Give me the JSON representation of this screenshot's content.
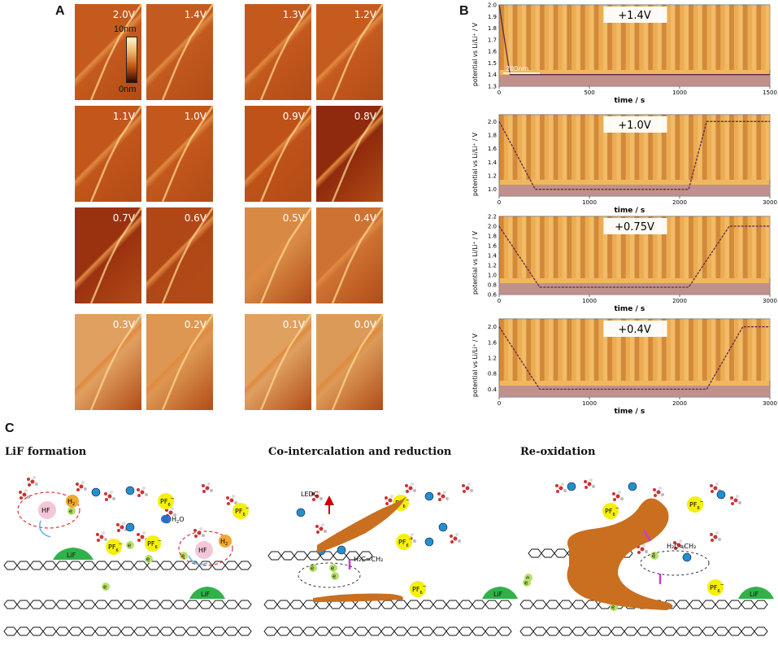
{
  "panel_a": {
    "letter": "A",
    "colorbar_top": "10nm",
    "colorbar_bottom": "0nm",
    "tiles": [
      {
        "label": "2.0V",
        "tone": "#c55a1e"
      },
      {
        "label": "1.4V",
        "tone": "#c35a1f"
      },
      {
        "label": "1.3V",
        "tone": "#c4591d"
      },
      {
        "label": "1.2V",
        "tone": "#c65b1f"
      },
      {
        "label": "1.1V",
        "tone": "#c2561b"
      },
      {
        "label": "1.0V",
        "tone": "#c3581c"
      },
      {
        "label": "0.9V",
        "tone": "#bf5219"
      },
      {
        "label": "0.8V",
        "tone": "#8f2a0c"
      },
      {
        "label": "0.7V",
        "tone": "#9b320f"
      },
      {
        "label": "0.6V",
        "tone": "#b14717"
      },
      {
        "label": "0.5V",
        "tone": "#d88a45"
      },
      {
        "label": "0.4V",
        "tone": "#cd7232"
      },
      {
        "label": "0.3V",
        "tone": "#e0a060"
      },
      {
        "label": "0.2V",
        "tone": "#dd9752"
      },
      {
        "label": "0.1V",
        "tone": "#dfa060"
      },
      {
        "label": "0.0V",
        "tone": "#dc9a58"
      }
    ]
  },
  "panel_b": {
    "letter": "B",
    "ylabel": "potential vs Li/Li⁺ / V",
    "xlabel": "time / s",
    "scale_bar": "200nm"
  },
  "chart_data": [
    {
      "type": "line",
      "title": "+1.4V",
      "xlabel": "time / s",
      "ylabel": "potential vs Li/Li⁺ / V",
      "xlim": [
        0,
        1500
      ],
      "ylim": [
        1.3,
        2.0
      ],
      "xticks": [
        "0",
        "500",
        "1000",
        "1500"
      ],
      "yticks": [
        "2.0",
        "1.9",
        "1.8",
        "1.7",
        "1.6",
        "1.5",
        "1.4",
        "1.3"
      ],
      "x": [
        0,
        60,
        1500
      ],
      "y": [
        2.0,
        1.4,
        1.4
      ]
    },
    {
      "type": "line",
      "title": "+1.0V",
      "xlabel": "time / s",
      "ylabel": "potential vs Li/Li⁺ / V",
      "xlim": [
        0,
        3000
      ],
      "ylim": [
        0.9,
        2.1
      ],
      "xticks": [
        "0",
        "1000",
        "2000",
        "3000"
      ],
      "yticks": [
        "2.0",
        "1.8",
        "1.6",
        "1.4",
        "1.2",
        "1.0"
      ],
      "x": [
        0,
        400,
        2100,
        2300,
        3000
      ],
      "y": [
        2.0,
        1.0,
        1.0,
        2.0,
        2.0
      ]
    },
    {
      "type": "line",
      "title": "+0.75V",
      "xlabel": "time / s",
      "ylabel": "potential vs Li/Li⁺ / V",
      "xlim": [
        0,
        3000
      ],
      "ylim": [
        0.6,
        2.2
      ],
      "xticks": [
        "0",
        "1000",
        "2000",
        "3000"
      ],
      "yticks": [
        "2.2",
        "2.0",
        "1.8",
        "1.6",
        "1.4",
        "1.2",
        "1.0",
        "0.8",
        "0.6"
      ],
      "x": [
        0,
        450,
        2100,
        2550,
        3000
      ],
      "y": [
        2.0,
        0.75,
        0.75,
        2.0,
        2.0
      ]
    },
    {
      "type": "line",
      "title": "+0.4V",
      "xlabel": "time / s",
      "ylabel": "potential vs Li/Li⁺ / V",
      "xlim": [
        0,
        3000
      ],
      "ylim": [
        0.2,
        2.2
      ],
      "xticks": [
        "0",
        "1000",
        "2000",
        "3000"
      ],
      "yticks": [
        "2.0",
        "1.6",
        "1.2",
        "0.8",
        "0.4"
      ],
      "x": [
        0,
        450,
        2300,
        2700,
        3000
      ],
      "y": [
        2.0,
        0.4,
        0.4,
        2.0,
        2.0
      ]
    }
  ],
  "panel_c": {
    "letter": "C",
    "stages": [
      {
        "title": "LiF formation"
      },
      {
        "title": "Co-intercalation and reduction"
      },
      {
        "title": "Re-oxidation"
      }
    ],
    "labels": {
      "hf": "HF",
      "h2": "H",
      "h2_sub": "2",
      "pf6": "PF",
      "pf6_sub": "6",
      "electron": "e",
      "lif": "LiF",
      "h2o_main": "H",
      "h2o_sub": "2",
      "h2o_end": "O",
      "ledc": "LEDC",
      "ethylene": "H₂C=CH₂"
    }
  }
}
